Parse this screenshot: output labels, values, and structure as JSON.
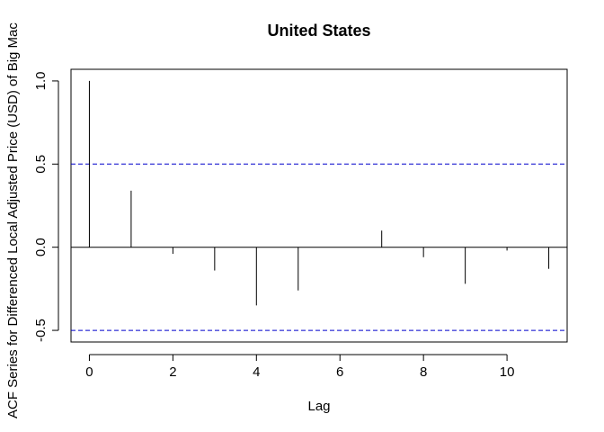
{
  "chart_data": {
    "type": "bar",
    "title": "United States",
    "xlabel": "Lag",
    "ylabel": "ACF Series for Differenced Local Adjusted Price (USD) of Big Mac",
    "x": [
      0,
      1,
      2,
      3,
      4,
      5,
      6,
      7,
      8,
      9,
      10,
      11
    ],
    "values": [
      1.0,
      0.34,
      -0.04,
      -0.14,
      -0.35,
      -0.26,
      0.0,
      0.1,
      -0.06,
      -0.22,
      -0.02,
      -0.13
    ],
    "xlim": [
      -0.44,
      11.44
    ],
    "ylim": [
      -0.57,
      1.07
    ],
    "xticks": [
      0,
      2,
      4,
      6,
      8,
      10
    ],
    "yticks": [
      -0.5,
      0.0,
      0.5,
      1.0
    ],
    "xtick_labels": [
      "0",
      "2",
      "4",
      "6",
      "8",
      "10"
    ],
    "ytick_labels": [
      "-0.5",
      "0.0",
      "0.5",
      "1.0"
    ],
    "confidence_bounds": [
      0.5,
      -0.5
    ],
    "colors": {
      "bars": "#000000",
      "confidence": "#0000cc",
      "zero_line": "#000000"
    },
    "grid": false,
    "legend": "none"
  }
}
